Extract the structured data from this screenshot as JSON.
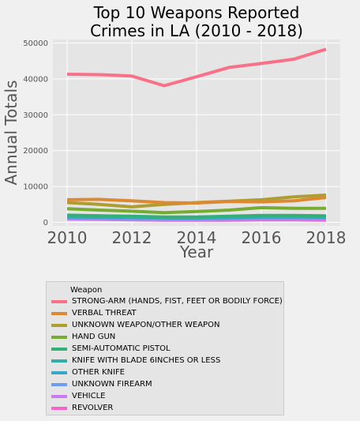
{
  "chart_data": {
    "type": "line",
    "title_lines": [
      "Top 10 Weapons Reported",
      "Crimes in LA (2010 - 2018)"
    ],
    "xlabel": "Year",
    "ylabel": "Annual Totals",
    "xlim": [
      2010,
      2018
    ],
    "ylim": [
      -1000,
      51000
    ],
    "x_ticks": [
      "2010",
      "2012",
      "2014",
      "2016",
      "2018"
    ],
    "y_ticks": [
      "0",
      "10000",
      "20000",
      "30000",
      "40000",
      "50000"
    ],
    "grid": true,
    "legend_title": "Weapon",
    "legend_position": "below",
    "x": [
      2010,
      2011,
      2012,
      2013,
      2014,
      2015,
      2016,
      2017,
      2018
    ],
    "series": [
      {
        "name": "STRONG-ARM (HANDS, FIST, FEET OR BODILY FORCE)",
        "color": "#f77189",
        "values": [
          41300,
          41200,
          40800,
          38100,
          40600,
          43200,
          44300,
          45500,
          48300
        ]
      },
      {
        "name": "VERBAL THREAT",
        "color": "#dc8932",
        "values": [
          6300,
          6400,
          6000,
          5500,
          5400,
          5800,
          5700,
          6000,
          6900
        ]
      },
      {
        "name": "UNKNOWN WEAPON/OTHER WEAPON",
        "color": "#ae9d31",
        "values": [
          5500,
          5000,
          4300,
          5000,
          5500,
          5900,
          6300,
          7100,
          7600
        ]
      },
      {
        "name": "HAND GUN",
        "color": "#77ab31",
        "values": [
          3800,
          3400,
          3100,
          2700,
          3000,
          3400,
          4100,
          3900,
          3900
        ]
      },
      {
        "name": "SEMI-AUTOMATIC PISTOL",
        "color": "#33b07a",
        "values": [
          2000,
          1800,
          1700,
          1500,
          1500,
          1700,
          1900,
          1900,
          1800
        ]
      },
      {
        "name": "KNIFE WITH BLADE 6INCHES OR LESS",
        "color": "#36ada4",
        "values": [
          1900,
          1800,
          1600,
          1400,
          1400,
          1600,
          1800,
          1800,
          1700
        ]
      },
      {
        "name": "OTHER KNIFE",
        "color": "#38a9c5",
        "values": [
          1500,
          1400,
          1300,
          1200,
          1200,
          1300,
          1500,
          1500,
          1400
        ]
      },
      {
        "name": "UNKNOWN FIREARM",
        "color": "#6e9bf4",
        "values": [
          1300,
          1200,
          1100,
          1000,
          1000,
          1100,
          1200,
          1200,
          1200
        ]
      },
      {
        "name": "VEHICLE",
        "color": "#cc7af4",
        "values": [
          1000,
          900,
          900,
          800,
          800,
          900,
          1000,
          1000,
          900
        ]
      },
      {
        "name": "REVOLVER",
        "color": "#f565cc",
        "values": [
          900,
          800,
          700,
          600,
          600,
          600,
          700,
          700,
          600
        ]
      }
    ]
  }
}
